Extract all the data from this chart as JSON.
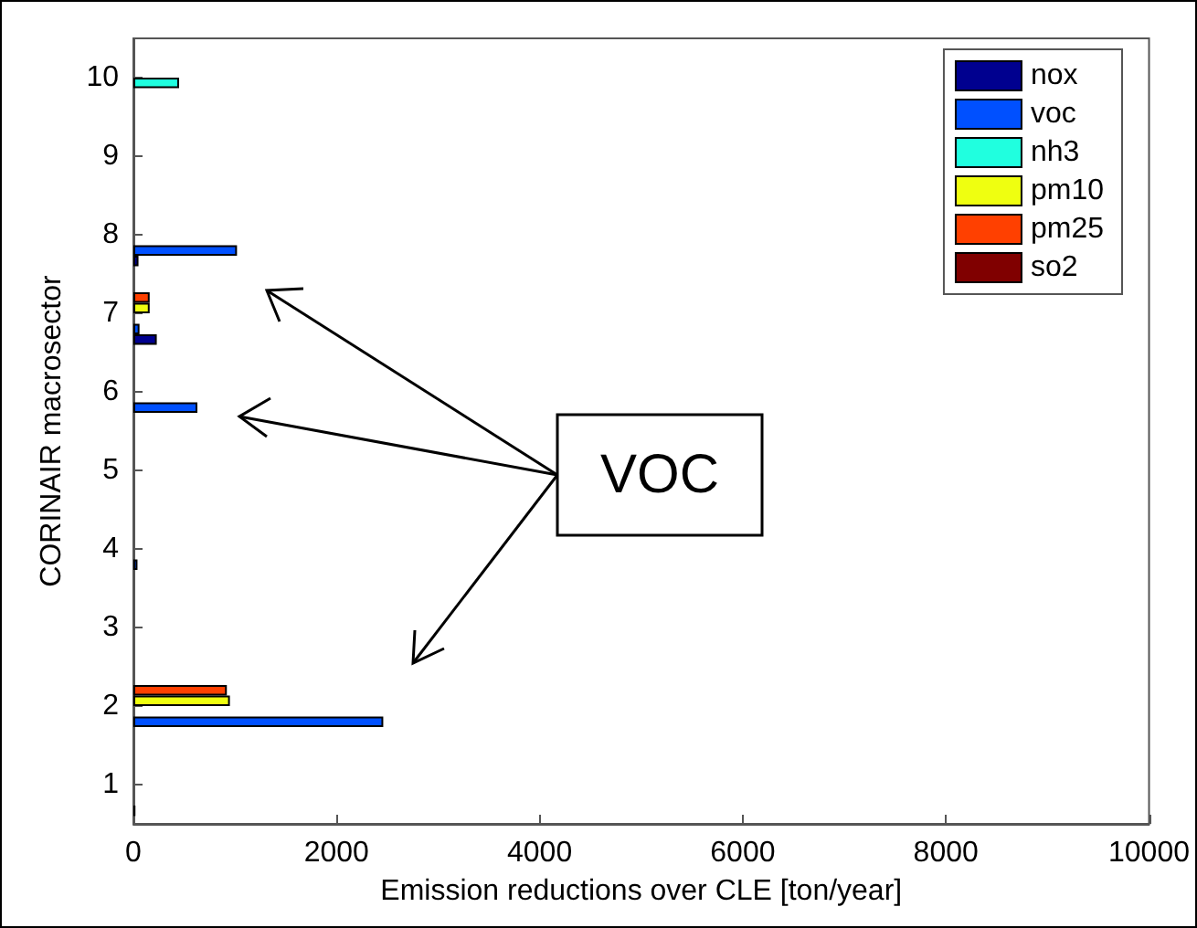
{
  "chart_data": {
    "type": "bar",
    "orientation": "horizontal",
    "xlabel": "Emission reductions over CLE [ton/year]",
    "ylabel": "CORINAIR macrosector",
    "categories": [
      "10",
      "9",
      "8",
      "7",
      "6",
      "5",
      "4",
      "3",
      "2",
      "1"
    ],
    "series": [
      {
        "name": "nox",
        "color": "#00008f",
        "values": [
          null,
          null,
          50,
          230,
          null,
          null,
          null,
          null,
          null,
          20
        ]
      },
      {
        "name": "voc",
        "color": "#0050ff",
        "values": [
          null,
          null,
          1020,
          60,
          630,
          null,
          40,
          null,
          2460,
          null
        ]
      },
      {
        "name": "nh3",
        "color": "#20ffdf",
        "values": [
          450,
          null,
          null,
          null,
          null,
          null,
          null,
          null,
          null,
          null
        ]
      },
      {
        "name": "pm10",
        "color": "#efff10",
        "values": [
          null,
          null,
          null,
          160,
          null,
          null,
          null,
          null,
          950,
          null
        ]
      },
      {
        "name": "pm25",
        "color": "#ff4000",
        "values": [
          null,
          null,
          null,
          160,
          null,
          null,
          null,
          null,
          920,
          null
        ]
      },
      {
        "name": "so2",
        "color": "#800000",
        "values": [
          null,
          null,
          null,
          null,
          null,
          null,
          null,
          null,
          null,
          null
        ]
      }
    ],
    "xlim": [
      0,
      10000
    ],
    "xticks": [
      0,
      2000,
      4000,
      6000,
      8000,
      10000
    ],
    "legend": "top right",
    "annotations": [
      "VOC"
    ]
  }
}
